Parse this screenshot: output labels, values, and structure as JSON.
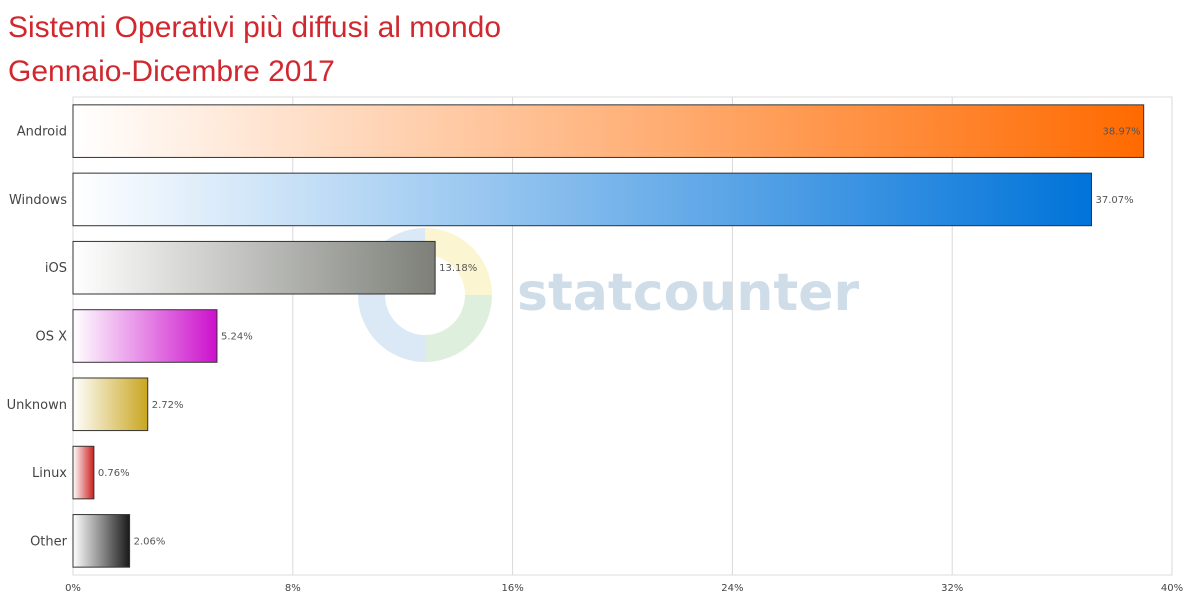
{
  "title": "Sistemi Operativi più diffusi al mondo",
  "subtitle": "Gennaio-Dicembre 2017",
  "watermark": "statcounter",
  "chart_data": {
    "type": "bar",
    "orientation": "horizontal",
    "categories": [
      "Android",
      "Windows",
      "iOS",
      "OS X",
      "Unknown",
      "Linux",
      "Other"
    ],
    "values": [
      38.97,
      37.07,
      13.18,
      5.24,
      2.72,
      0.76,
      2.06
    ],
    "value_labels": [
      "38.97%",
      "37.07%",
      "13.18%",
      "5.24%",
      "2.72%",
      "0.76%",
      "2.06%"
    ],
    "xlim": [
      0,
      40
    ],
    "x_ticks": [
      0,
      8,
      16,
      24,
      32,
      40
    ],
    "x_tick_labels": [
      "0%",
      "8%",
      "16%",
      "24%",
      "32%",
      "40%"
    ],
    "grid": true,
    "colors": [
      "#ff6a00",
      "#0073d9",
      "#7d7f78",
      "#cc11cc",
      "#c9a620",
      "#cc1f1f",
      "#1a1a1a"
    ]
  }
}
